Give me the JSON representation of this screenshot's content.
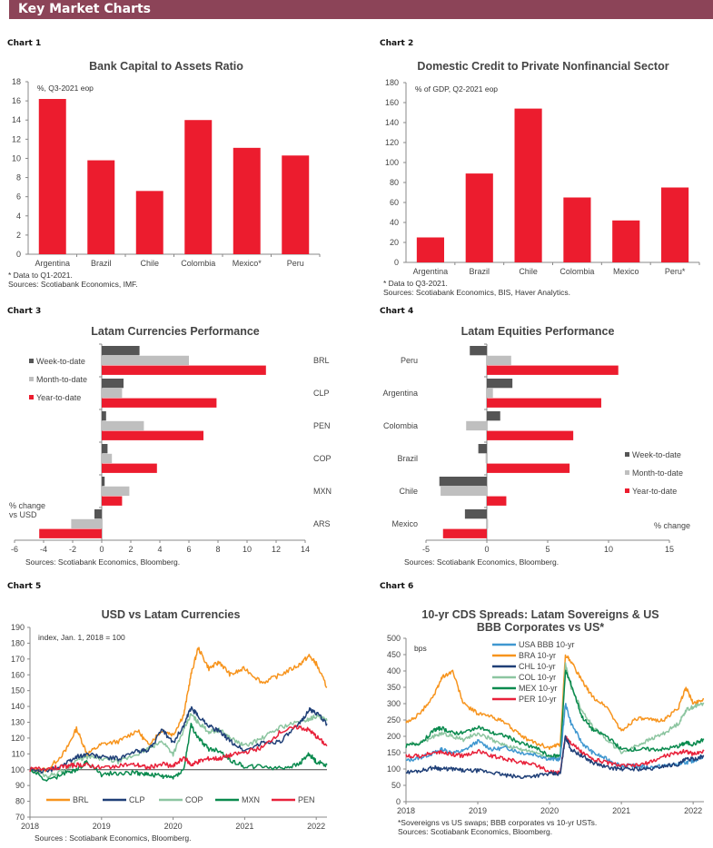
{
  "header": {
    "title": "Key Market Charts"
  },
  "colors": {
    "header_bg": "#8c4458",
    "bar_red": "#ec1c2e",
    "wtd": "#555555",
    "mtd": "#bfbfbf",
    "ytd": "#ec1c2e",
    "brl": "#f7941d",
    "clp": "#1f3f77",
    "cop": "#8cc5a0",
    "mxn": "#0a8a4e",
    "pen": "#e8213a",
    "usa": "#3f97d0"
  },
  "chart_data": [
    {
      "id": "chart1",
      "label": "Chart 1",
      "type": "bar",
      "title": "Bank Capital to Assets Ratio",
      "annotation": "%, Q3-2021 eop",
      "categories": [
        "Argentina",
        "Brazil",
        "Chile",
        "Colombia",
        "Mexico*",
        "Peru"
      ],
      "values": [
        16.2,
        9.8,
        6.6,
        14.0,
        11.1,
        10.3
      ],
      "ylim": [
        0,
        18
      ],
      "yticks": [
        0,
        2,
        4,
        6,
        8,
        10,
        12,
        14,
        16,
        18
      ],
      "xlabel": "",
      "ylabel": "",
      "footnotes": [
        "* Data to Q1-2021.",
        "Sources: Scotiabank Economics, IMF."
      ]
    },
    {
      "id": "chart2",
      "label": "Chart 2",
      "type": "bar",
      "title": "Domestic Credit to Private Nonfinancial  Sector",
      "annotation": "% of GDP, Q2-2021 eop",
      "categories": [
        "Argentina",
        "Brazil",
        "Chile",
        "Colombia",
        "Mexico",
        "Peru*"
      ],
      "values": [
        25,
        89,
        154,
        65,
        42,
        75
      ],
      "ylim": [
        0,
        180
      ],
      "yticks": [
        0,
        20,
        40,
        60,
        80,
        100,
        120,
        140,
        160,
        180
      ],
      "xlabel": "",
      "ylabel": "",
      "footnotes": [
        "* Data to Q3-2021.",
        "Sources: Scotiabank Economics, BIS, Haver Analytics."
      ]
    },
    {
      "id": "chart3",
      "label": "Chart 3",
      "type": "bar",
      "orientation": "horizontal",
      "title": "Latam Currencies  Performance",
      "categories": [
        "BRL",
        "CLP",
        "PEN",
        "COP",
        "MXN",
        "ARS"
      ],
      "series": [
        {
          "name": "Week-to-date",
          "values": [
            2.6,
            1.5,
            0.3,
            0.4,
            0.2,
            -0.5
          ]
        },
        {
          "name": "Month-to-date",
          "values": [
            6.0,
            1.4,
            2.9,
            0.7,
            1.9,
            -2.1
          ]
        },
        {
          "name": "Year-to-date",
          "values": [
            11.3,
            7.9,
            7.0,
            3.8,
            1.4,
            -4.3
          ]
        }
      ],
      "xlim": [
        -6,
        14
      ],
      "xticks": [
        -6,
        -4,
        -2,
        0,
        2,
        4,
        6,
        8,
        10,
        12,
        14
      ],
      "legend": "left",
      "axis_note": [
        "% change",
        "vs USD"
      ],
      "footnotes": [
        "Sources: Scotiabank Economics, Bloomberg."
      ]
    },
    {
      "id": "chart4",
      "label": "Chart 4",
      "type": "bar",
      "orientation": "horizontal",
      "title": "Latam Equities  Performance",
      "categories": [
        "Peru",
        "Argentina",
        "Colombia",
        "Brazil",
        "Chile",
        "Mexico"
      ],
      "series": [
        {
          "name": "Week-to-date",
          "values": [
            -1.4,
            2.1,
            1.1,
            -0.7,
            -3.9,
            -1.8
          ]
        },
        {
          "name": "Month-to-date",
          "values": [
            2.0,
            0.5,
            -1.7,
            -0.1,
            -3.8,
            0.1
          ]
        },
        {
          "name": "Year-to-date",
          "values": [
            10.8,
            9.4,
            7.1,
            6.8,
            1.6,
            -3.6
          ]
        }
      ],
      "xlim": [
        -5,
        15
      ],
      "xticks": [
        -5,
        0,
        5,
        10,
        15
      ],
      "legend": "right",
      "axis_note": [
        "% change"
      ],
      "footnotes": [
        "Sources: Scotiabank Economics, Bloomberg."
      ]
    },
    {
      "id": "chart5",
      "label": "Chart 5",
      "type": "line",
      "title": "USD vs Latam Currencies",
      "annotation": "index,  Jan. 1, 2018 =  100",
      "x": [
        2018.0,
        2018.25,
        2018.5,
        2018.65,
        2018.8,
        2019.0,
        2019.25,
        2019.5,
        2019.65,
        2019.85,
        2020.0,
        2020.15,
        2020.25,
        2020.35,
        2020.5,
        2020.65,
        2020.8,
        2021.0,
        2021.25,
        2021.5,
        2021.75,
        2021.9,
        2022.0,
        2022.15
      ],
      "series": [
        {
          "name": "BRL",
          "values": [
            100,
            100,
            112,
            126,
            110,
            116,
            118,
            125,
            116,
            125,
            122,
            135,
            160,
            177,
            164,
            168,
            160,
            164,
            155,
            160,
            166,
            172,
            167,
            152
          ]
        },
        {
          "name": "CLP",
          "values": [
            100,
            99,
            104,
            108,
            110,
            108,
            107,
            112,
            112,
            125,
            117,
            128,
            139,
            134,
            128,
            124,
            118,
            112,
            117,
            118,
            128,
            138,
            136,
            129
          ]
        },
        {
          "name": "COP",
          "values": [
            100,
            96,
            100,
            106,
            108,
            107,
            105,
            110,
            113,
            118,
            110,
            125,
            135,
            130,
            124,
            125,
            120,
            115,
            120,
            127,
            130,
            132,
            134,
            131
          ]
        },
        {
          "name": "MXN",
          "values": [
            100,
            93,
            98,
            100,
            105,
            97,
            98,
            98,
            97,
            96,
            95,
            100,
            128,
            120,
            113,
            112,
            106,
            102,
            102,
            101,
            103,
            110,
            105,
            103
          ]
        },
        {
          "name": "PEN",
          "values": [
            100,
            101,
            102,
            103,
            103,
            101,
            103,
            103,
            101,
            104,
            102,
            108,
            103,
            105,
            107,
            107,
            109,
            111,
            114,
            124,
            127,
            125,
            121,
            115
          ]
        }
      ],
      "ylim": [
        70,
        190
      ],
      "yticks": [
        70,
        80,
        90,
        100,
        110,
        120,
        130,
        140,
        150,
        160,
        170,
        180,
        190
      ],
      "xlim": [
        2018,
        2022.15
      ],
      "xticks": [
        "2018",
        "2019",
        "2020",
        "2021",
        "2022"
      ],
      "reference_line": 100,
      "legend": "bottom",
      "footnotes": [
        "Sources : Scotiabank  Economics, Bloomberg."
      ]
    },
    {
      "id": "chart6",
      "label": "Chart 6",
      "type": "line",
      "title": [
        "10-yr CDS  Spreads: Latam Sovereigns & US",
        "BBB Corporates vs US*"
      ],
      "annotation": "bps",
      "x": [
        2018.0,
        2018.2,
        2018.4,
        2018.5,
        2018.65,
        2018.8,
        2019.0,
        2019.2,
        2019.4,
        2019.6,
        2019.8,
        2020.0,
        2020.15,
        2020.22,
        2020.3,
        2020.45,
        2020.6,
        2020.8,
        2021.0,
        2021.2,
        2021.4,
        2021.6,
        2021.8,
        2021.9,
        2022.0,
        2022.15
      ],
      "series": [
        {
          "name": "USA BBB 10-yr",
          "values": [
            125,
            135,
            150,
            160,
            150,
            155,
            185,
            160,
            165,
            150,
            145,
            130,
            130,
            300,
            240,
            180,
            150,
            130,
            110,
            110,
            105,
            110,
            115,
            120,
            125,
            140
          ]
        },
        {
          "name": "BRA 10-yr",
          "values": [
            240,
            270,
            330,
            380,
            400,
            300,
            270,
            260,
            240,
            200,
            180,
            165,
            175,
            450,
            430,
            370,
            320,
            290,
            215,
            255,
            250,
            250,
            290,
            350,
            300,
            315
          ]
        },
        {
          "name": "CHL 10-yr",
          "values": [
            90,
            95,
            105,
            100,
            100,
            95,
            95,
            90,
            80,
            75,
            80,
            85,
            85,
            200,
            160,
            140,
            120,
            105,
            100,
            100,
            100,
            110,
            115,
            130,
            130,
            140
          ]
        },
        {
          "name": "COL 10-yr",
          "values": [
            175,
            180,
            200,
            210,
            200,
            190,
            210,
            190,
            170,
            160,
            150,
            135,
            140,
            420,
            350,
            280,
            230,
            190,
            150,
            170,
            190,
            210,
            240,
            280,
            290,
            300
          ]
        },
        {
          "name": "MEX 10-yr",
          "values": [
            170,
            180,
            220,
            225,
            210,
            210,
            230,
            210,
            200,
            180,
            165,
            140,
            140,
            400,
            360,
            260,
            220,
            200,
            160,
            160,
            160,
            160,
            170,
            180,
            175,
            190
          ]
        },
        {
          "name": "PER 10-yr",
          "values": [
            140,
            140,
            150,
            150,
            145,
            140,
            155,
            140,
            130,
            120,
            115,
            90,
            90,
            200,
            180,
            150,
            130,
            120,
            110,
            110,
            120,
            140,
            150,
            155,
            145,
            155
          ]
        }
      ],
      "ylim": [
        0,
        500
      ],
      "yticks": [
        0,
        50,
        100,
        150,
        200,
        250,
        300,
        350,
        400,
        450,
        500
      ],
      "xlim": [
        2018,
        2022.15
      ],
      "xticks": [
        "2018",
        "2019",
        "2020",
        "2021",
        "2022"
      ],
      "legend": "top-left",
      "footnotes": [
        "*Sovereigns vs US swaps; BBB corporates vs 10-yr USTs.",
        "Sources: Scotiabank Economics, Bloomberg."
      ]
    }
  ]
}
